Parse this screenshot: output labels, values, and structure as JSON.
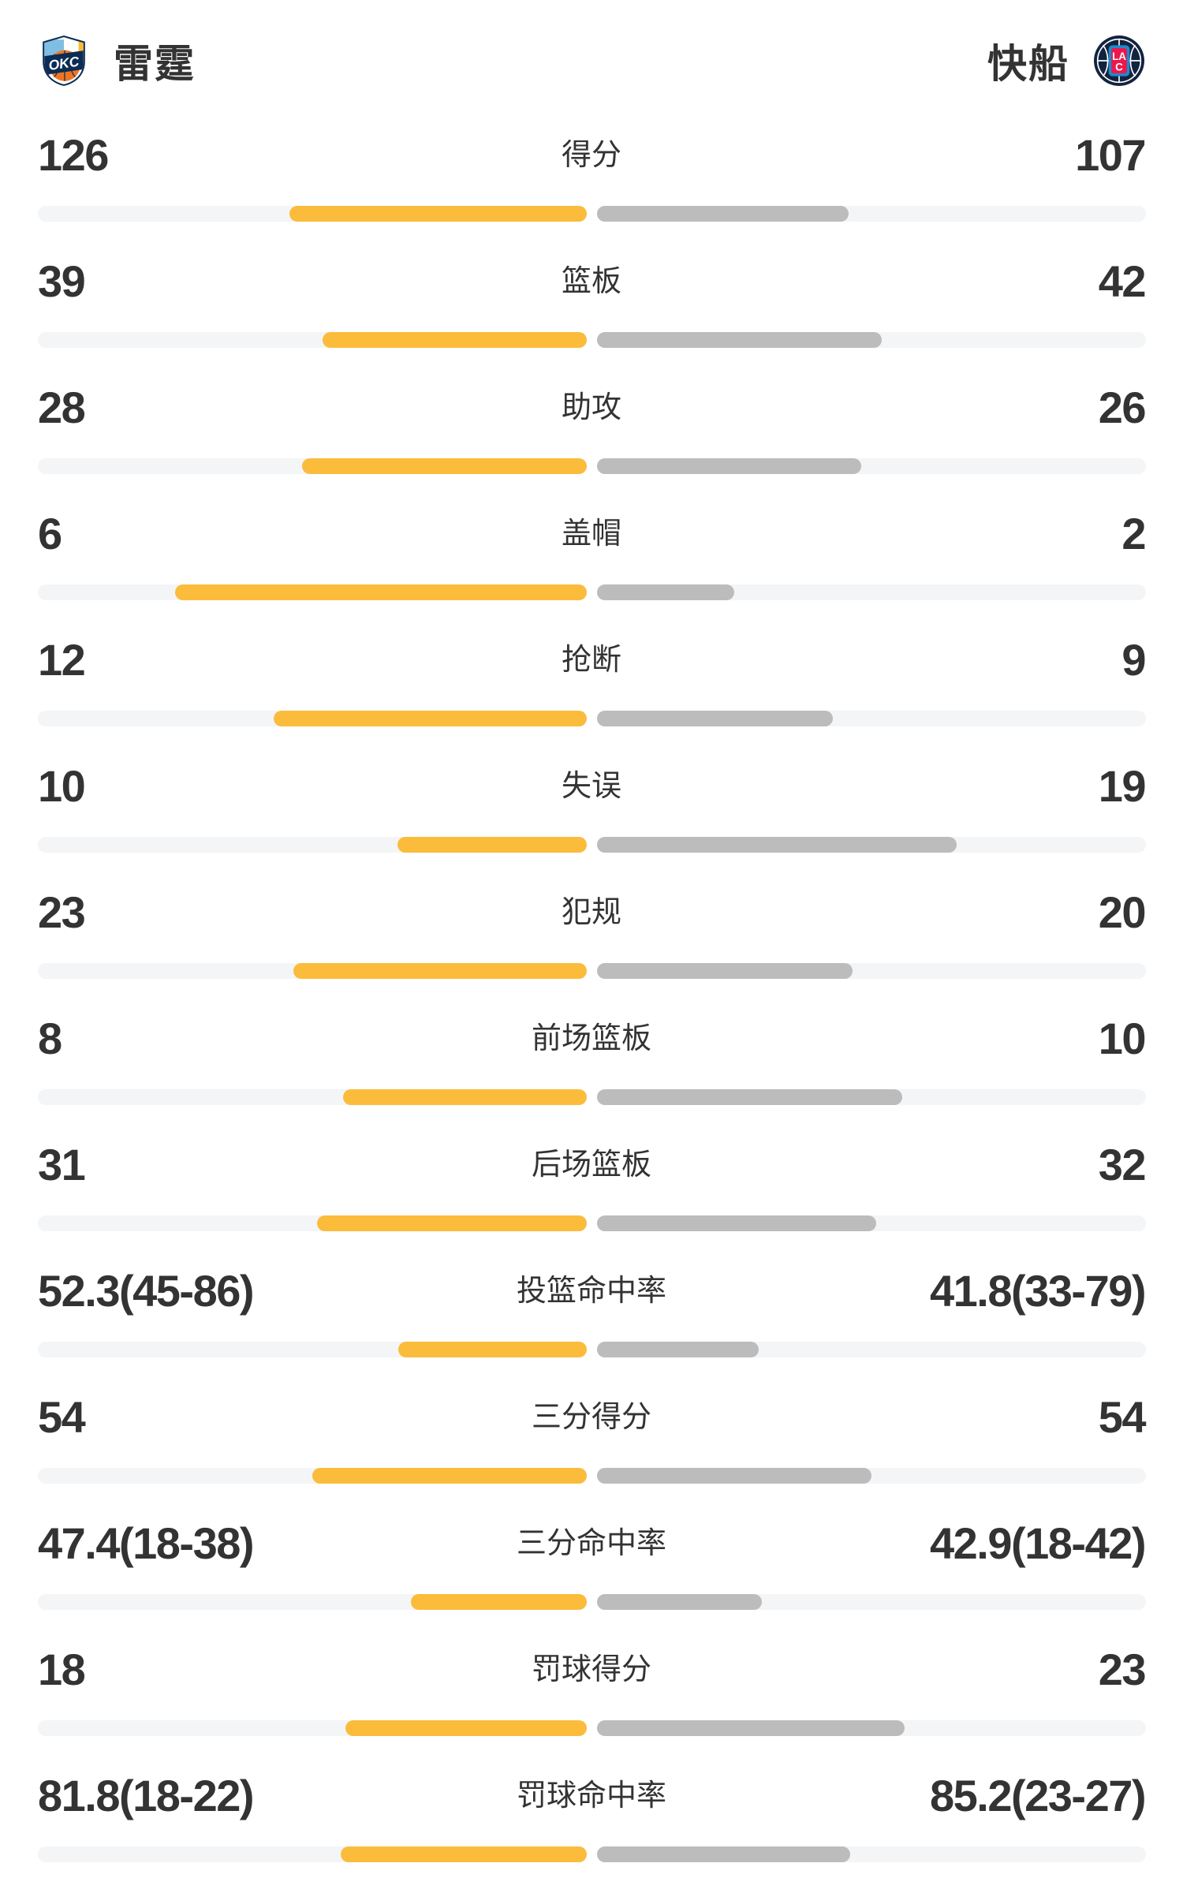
{
  "header": {
    "left_team": {
      "name": "雷霆",
      "logo_icon": "okc-thunder-logo"
    },
    "right_team": {
      "name": "快船",
      "logo_icon": "la-clippers-logo"
    }
  },
  "colors": {
    "home_bar": "#FBBC3C",
    "away_bar": "#BCBCBC",
    "bar_track": "#F4F5F7",
    "text": "#333333",
    "okc_blue": "#1D8BCE",
    "okc_orange": "#EE7623",
    "okc_navy": "#0B2C54",
    "okc_red": "#E13A3E",
    "okc_yellow": "#FDBB30",
    "clippers_navy": "#12233F",
    "clippers_red": "#ED174C",
    "clippers_blue": "#1D8BCE"
  },
  "chart_data": {
    "type": "bar",
    "subtype": "paired-horizontal-team-comparison",
    "teams": [
      "雷霆",
      "快船"
    ],
    "legend_position": "header",
    "rows": [
      {
        "key": "points",
        "label": "得分",
        "left": "126",
        "right": "107",
        "left_fill_pct": 54.1,
        "right_fill_pct": 45.9
      },
      {
        "key": "rebounds",
        "label": "篮板",
        "left": "39",
        "right": "42",
        "left_fill_pct": 48.1,
        "right_fill_pct": 51.9
      },
      {
        "key": "assists",
        "label": "助攻",
        "left": "28",
        "right": "26",
        "left_fill_pct": 51.9,
        "right_fill_pct": 48.1
      },
      {
        "key": "blocks",
        "label": "盖帽",
        "left": "6",
        "right": "2",
        "left_fill_pct": 75.0,
        "right_fill_pct": 25.0
      },
      {
        "key": "steals",
        "label": "抢断",
        "left": "12",
        "right": "9",
        "left_fill_pct": 57.1,
        "right_fill_pct": 42.9
      },
      {
        "key": "turnovers",
        "label": "失误",
        "left": "10",
        "right": "19",
        "left_fill_pct": 34.5,
        "right_fill_pct": 65.5
      },
      {
        "key": "fouls",
        "label": "犯规",
        "left": "23",
        "right": "20",
        "left_fill_pct": 53.5,
        "right_fill_pct": 46.5
      },
      {
        "key": "offensive-rebounds",
        "label": "前场篮板",
        "left": "8",
        "right": "10",
        "left_fill_pct": 44.4,
        "right_fill_pct": 55.6
      },
      {
        "key": "defensive-rebounds",
        "label": "后场篮板",
        "left": "31",
        "right": "32",
        "left_fill_pct": 49.2,
        "right_fill_pct": 50.8
      },
      {
        "key": "field-goal-pct",
        "label": "投篮命中率",
        "left": "52.3(45-86)",
        "right": "41.8(33-79)",
        "left_fill_pct": 34.3,
        "right_fill_pct": 29.5
      },
      {
        "key": "three-point-points",
        "label": "三分得分",
        "left": "54",
        "right": "54",
        "left_fill_pct": 50.0,
        "right_fill_pct": 50.0
      },
      {
        "key": "three-point-pct",
        "label": "三分命中率",
        "left": "47.4(18-38)",
        "right": "42.9(18-42)",
        "left_fill_pct": 32.0,
        "right_fill_pct": 30.0
      },
      {
        "key": "free-throw-points",
        "label": "罚球得分",
        "left": "18",
        "right": "23",
        "left_fill_pct": 43.9,
        "right_fill_pct": 56.1
      },
      {
        "key": "free-throw-pct",
        "label": "罚球命中率",
        "left": "81.8(18-22)",
        "right": "85.2(23-27)",
        "left_fill_pct": 44.8,
        "right_fill_pct": 46.1
      }
    ]
  }
}
